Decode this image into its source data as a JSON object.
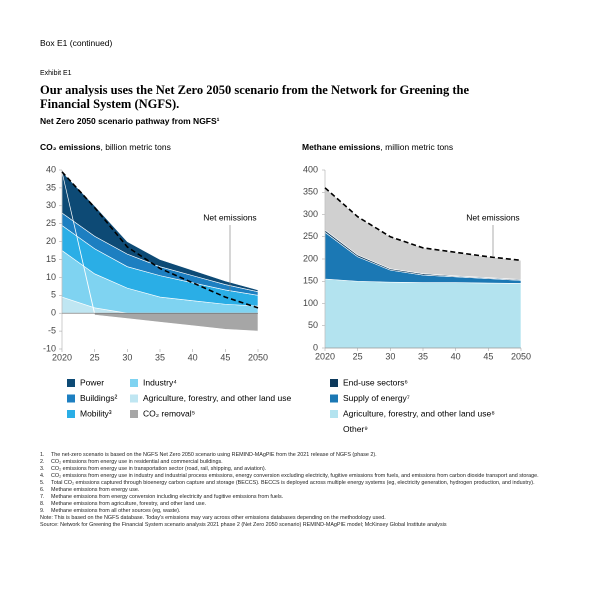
{
  "header": {
    "box": "Box E1 (continued)",
    "exhibit": "Exhibit E1",
    "title": "Our analysis uses the Net Zero 2050 scenario from the Network for Greening the Financial System (NGFS).",
    "subtitle": "Net Zero 2050 scenario pathway from NGFS¹"
  },
  "chart_data": [
    {
      "type": "area",
      "axis_label": {
        "bold": "CO₂ emissions",
        "rest": ", billion metric tons"
      },
      "x": [
        2020,
        2025,
        2030,
        2035,
        2040,
        2045,
        2050
      ],
      "xlim": [
        2020,
        2050
      ],
      "xticks": [
        2020,
        {
          "value": 2025,
          "label": "25"
        },
        {
          "value": 2030,
          "label": "30"
        },
        {
          "value": 2035,
          "label": "35"
        },
        {
          "value": 2040,
          "label": "40"
        },
        {
          "value": 2045,
          "label": "45"
        },
        2050
      ],
      "ylim": [
        -10,
        40
      ],
      "yticks": [
        40,
        35,
        30,
        25,
        20,
        15,
        10,
        5,
        0,
        -5,
        -10
      ],
      "series": [
        {
          "name": "Agriculture, forestry, and other land use",
          "color": "#bfe6f2",
          "values": [
            4.5,
            1.5,
            0,
            0,
            0,
            0,
            0
          ]
        },
        {
          "name": "Industry⁴",
          "color": "#7fd3f1",
          "values": [
            13,
            9.5,
            7,
            4.5,
            3.5,
            2.5,
            2
          ]
        },
        {
          "name": "Mobility³",
          "color": "#2aaee6",
          "values": [
            7,
            7,
            6,
            6,
            5,
            4,
            3
          ]
        },
        {
          "name": "Buildings²",
          "color": "#1d7fc1",
          "values": [
            3.5,
            3.5,
            3.5,
            2.5,
            2,
            1.5,
            1
          ]
        },
        {
          "name": "Power",
          "color": "#0d4a75",
          "values": [
            11.5,
            8.5,
            3.5,
            2,
            1.5,
            1,
            0.5
          ]
        },
        {
          "name": "CO₂ removal⁵",
          "color": "#a6a6a6",
          "values": [
            0,
            -0.5,
            -1.5,
            -2.5,
            -3.5,
            -4.5,
            -5
          ]
        }
      ],
      "net": {
        "name": "Net emissions",
        "color": "#000000",
        "values": [
          39.5,
          29.5,
          18.5,
          12.5,
          8.5,
          4.5,
          1.5
        ]
      }
    },
    {
      "type": "area",
      "axis_label": {
        "bold": "Methane emissions",
        "rest": ", million metric tons"
      },
      "x": [
        2020,
        2025,
        2030,
        2035,
        2040,
        2045,
        2050
      ],
      "xlim": [
        2020,
        2050
      ],
      "xticks": [
        2020,
        {
          "value": 2025,
          "label": "25"
        },
        {
          "value": 2030,
          "label": "30"
        },
        {
          "value": 2035,
          "label": "35"
        },
        {
          "value": 2040,
          "label": "40"
        },
        {
          "value": 2045,
          "label": "45"
        },
        2050
      ],
      "ylim": [
        0,
        400
      ],
      "yticks": [
        400,
        350,
        300,
        250,
        200,
        150,
        100,
        50,
        0
      ],
      "series": [
        {
          "name": "Agriculture, forestry, and other land use⁸",
          "color": "#b3e3ef",
          "values": [
            155,
            150,
            148,
            147,
            147,
            146,
            145
          ]
        },
        {
          "name": "Supply of energy⁷",
          "color": "#1b78b4",
          "values": [
            105,
            55,
            27,
            17,
            13,
            10,
            7
          ]
        },
        {
          "name": "End-use sectors⁶",
          "color": "#0d3a5c",
          "values": [
            5,
            4,
            3,
            3,
            2,
            2,
            2
          ]
        },
        {
          "name": "Other⁹",
          "color": "#d0d0d0",
          "values": [
            95,
            86,
            72,
            58,
            53,
            47,
            43
          ]
        }
      ],
      "net": {
        "name": "Net emissions",
        "color": "#000000",
        "values": [
          360,
          295,
          250,
          225,
          215,
          205,
          197
        ]
      }
    }
  ],
  "footnotes": [
    {
      "number": "1.",
      "text": "The net-zero scenario is based on the NGFS Net Zero 2050 scenario using REMIND-MAgPIE from the 2021 release of NGFS (phase 2)."
    },
    {
      "number": "2.",
      "text": "CO₂ emissions from energy use in residential and commercial buildings."
    },
    {
      "number": "3.",
      "text": "CO₂ emissions from energy use in transportation sector (road, rail, shipping, and aviation)."
    },
    {
      "number": "4.",
      "text": "CO₂ emissions from energy use in industry and industrial process emissions, energy conversion excluding electricity, fugitive emissions from fuels, and emissions from carbon dioxide transport and storage."
    },
    {
      "number": "5.",
      "text": "Total CO₂ emissions captured through bioenergy carbon capture and storage (BECCS). BECCS is deployed across multiple energy systems (eg, electricity generation, hydrogen production, and industry)."
    },
    {
      "number": "6.",
      "text": "Methane emissions from energy use."
    },
    {
      "number": "7.",
      "text": "Methane emissions from energy conversion including electricity and fugitive emissions from fuels."
    },
    {
      "number": "8.",
      "text": "Methane emissions from agriculture, forestry, and other land use."
    },
    {
      "number": "9.",
      "text": "Methane emissions from all other sources (eg, waste)."
    }
  ],
  "note": "Note: This is based on the NGFS database. Today's emissions may vary across other emissions databases depending on the methodology used.",
  "source": "Source: Network for Greening the Financial System scenario analysis 2021 phase 2 (Net Zero 2050 scenario) REMIND-MAgPIE model; McKinsey Global Institute analysis"
}
